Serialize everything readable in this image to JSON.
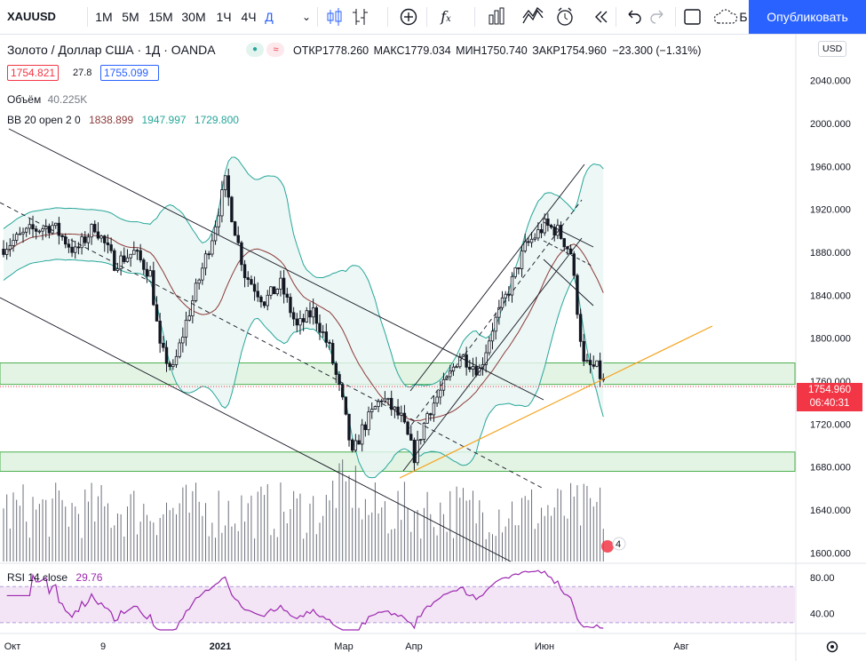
{
  "toolbar": {
    "symbol": "XAUUSD",
    "intervals": [
      "1М",
      "5М",
      "15М",
      "30М",
      "1Ч",
      "4Ч",
      "Д"
    ],
    "active_interval": "Д",
    "chevron_icon": "chevron-down-icon",
    "icons": [
      "candles-icon",
      "bars-icon",
      "add-indicator-icon",
      "fx-icon",
      "compare-icon",
      "indicators-icon",
      "alert-icon",
      "replay-icon",
      "undo-icon",
      "redo-icon",
      "layout-icon",
      "cloud-icon"
    ],
    "cloud_label": "Б",
    "publish_label": "Опубликовать"
  },
  "header": {
    "title": "Золото / Доллар США · 1Д · OANDA",
    "open_label": "ОТКР",
    "open": "1778.260",
    "high_label": "МАКС",
    "high": "1779.034",
    "low_label": "МИН",
    "low": "1750.740",
    "close_label": "ЗАКР",
    "close": "1754.960",
    "change": "−23.300 (−1.31%)",
    "bid": "1754.821",
    "spread": "27.8",
    "ask": "1755.099",
    "volume_label": "Объём",
    "volume_value": "40.225K",
    "bb_label": "BB 20 open 2 0",
    "bb_mid": "1838.899",
    "bb_upper": "1947.997",
    "bb_lower": "1729.800",
    "rsi_label": "RSI 14 close",
    "rsi_value": "29.76"
  },
  "price_box": {
    "price": "1754.960",
    "countdown": "06:40:31"
  },
  "currency_button": "USD",
  "event_badge": "4",
  "colors": {
    "up": "#131722",
    "down": "#131722",
    "bb_band": "#26a69a",
    "bb_fill": "#e8f5f2",
    "bb_basis": "#8b3a3a",
    "zone_fill": "#d7f0d9",
    "zone_border": "#4caf50",
    "trendline": "#f7a21b",
    "rsi": "#9c27b0",
    "rsi_bg": "#f3e5f5",
    "price_red": "#f23645",
    "accent": "#2962ff"
  },
  "chart_data": {
    "type": "candlestick",
    "y_axis_ticks": [
      "2000.000",
      "1960.000",
      "1920.000",
      "1880.000",
      "1840.000",
      "1800.000",
      "1760.000",
      "1720.000",
      "1680.000",
      "1640.000",
      "1600.000",
      "2040.000"
    ],
    "x_axis_ticks": [
      "Окт",
      "9",
      "2021",
      "Мар",
      "Апр",
      "Июн",
      "Авг"
    ],
    "ylim": [
      1592,
      2082
    ],
    "rsi_ticks": [
      "80.00",
      "40.00"
    ],
    "rsi_ylim": [
      20,
      90
    ],
    "zones": [
      [
        1757,
        1777
      ],
      [
        1676,
        1694
      ]
    ],
    "last_price": 1754.96
  }
}
